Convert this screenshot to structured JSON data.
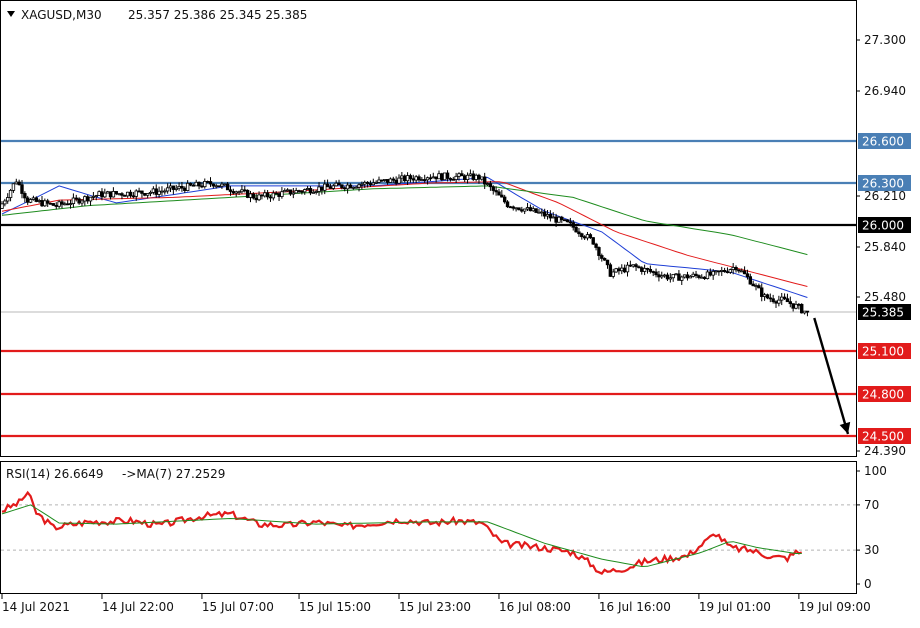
{
  "header": {
    "symbol": "XAGUSD,M30",
    "ohlc": "25.357 25.386 25.345 25.385"
  },
  "rsi_header": {
    "label": "RSI(14) 26.6649",
    "ma_label": "->MA(7) 27.2529"
  },
  "colors": {
    "background": "#ffffff",
    "candle": "#000000",
    "sma_fast": "#1f3fd6",
    "sma_mid": "#e21b1b",
    "sma_slow": "#1e8c1e",
    "resistance": "#4a7fb5",
    "pivot": "#000000",
    "support": "#e21b1b",
    "rsi_line": "#e21b1b",
    "rsi_ma": "#1e8c1e",
    "current_price": "#000000"
  },
  "chart_data": [
    {
      "type": "candlestick",
      "symbol": "XAGUSD",
      "timeframe": "M30",
      "ylim": [
        24.39,
        27.55
      ],
      "y_ticks": [
        "27.300",
        "26.940",
        "26.210",
        "25.840",
        "25.480",
        "24.390"
      ],
      "x_ticks": [
        "14 Jul 2021",
        "14 Jul 22:00",
        "15 Jul 07:00",
        "15 Jul 15:00",
        "15 Jul 23:00",
        "16 Jul 08:00",
        "16 Jul 16:00",
        "19 Jul 01:00",
        "19 Jul 09:00"
      ],
      "current_price": "25.385",
      "levels": [
        {
          "label": "26.600",
          "value": 26.6,
          "kind": "resistance"
        },
        {
          "label": "26.300",
          "value": 26.3,
          "kind": "resistance"
        },
        {
          "label": "26.000",
          "value": 26.0,
          "kind": "pivot"
        },
        {
          "label": "25.100",
          "value": 25.1,
          "kind": "support"
        },
        {
          "label": "24.800",
          "value": 24.8,
          "kind": "support"
        },
        {
          "label": "24.500",
          "value": 24.5,
          "kind": "support"
        }
      ],
      "forecast_arrow": {
        "from": 25.385,
        "to": 24.5
      },
      "trend_path": [
        [
          0,
          26.12
        ],
        [
          6,
          26.32
        ],
        [
          10,
          26.18
        ],
        [
          20,
          26.14
        ],
        [
          35,
          26.22
        ],
        [
          55,
          26.24
        ],
        [
          75,
          26.3
        ],
        [
          90,
          26.2
        ],
        [
          110,
          26.26
        ],
        [
          130,
          26.3
        ],
        [
          150,
          26.35
        ],
        [
          168,
          26.34
        ],
        [
          178,
          26.15
        ],
        [
          190,
          26.08
        ],
        [
          200,
          26.0
        ],
        [
          208,
          25.88
        ],
        [
          214,
          25.65
        ],
        [
          222,
          25.7
        ],
        [
          235,
          25.62
        ],
        [
          250,
          25.64
        ],
        [
          258,
          25.7
        ],
        [
          262,
          25.62
        ],
        [
          268,
          25.48
        ],
        [
          276,
          25.45
        ],
        [
          282,
          25.39
        ]
      ],
      "series": [
        {
          "name": "",
          "kind": "sma_fast",
          "points": [
            [
              0,
              26.08
            ],
            [
              20,
              26.28
            ],
            [
              40,
              26.16
            ],
            [
              80,
              26.28
            ],
            [
              130,
              26.28
            ],
            [
              170,
              26.34
            ],
            [
              190,
              26.1
            ],
            [
              210,
              25.95
            ],
            [
              225,
              25.72
            ],
            [
              255,
              25.66
            ],
            [
              283,
              25.47
            ]
          ]
        },
        {
          "name": "",
          "kind": "sma_mid",
          "points": [
            [
              0,
              26.1
            ],
            [
              20,
              26.18
            ],
            [
              60,
              26.2
            ],
            [
              100,
              26.24
            ],
            [
              150,
              26.3
            ],
            [
              175,
              26.31
            ],
            [
              195,
              26.16
            ],
            [
              215,
              25.95
            ],
            [
              240,
              25.78
            ],
            [
              283,
              25.55
            ]
          ]
        },
        {
          "name": "",
          "kind": "sma_slow",
          "points": [
            [
              0,
              26.07
            ],
            [
              30,
              26.14
            ],
            [
              80,
              26.2
            ],
            [
              130,
              26.26
            ],
            [
              170,
              26.28
            ],
            [
              200,
              26.2
            ],
            [
              225,
              26.03
            ],
            [
              255,
              25.93
            ],
            [
              283,
              25.78
            ]
          ]
        }
      ]
    },
    {
      "type": "line",
      "indicator": "RSI(14)",
      "ylim": [
        0,
        100
      ],
      "y_ticks": [
        "100",
        "70",
        "30",
        "0"
      ],
      "levels": [
        70,
        30
      ],
      "series": [
        {
          "name": "RSI(14)",
          "points": [
            [
              0,
              65
            ],
            [
              6,
              72
            ],
            [
              9,
              81
            ],
            [
              12,
              63
            ],
            [
              18,
              50
            ],
            [
              30,
              55
            ],
            [
              45,
              56
            ],
            [
              55,
              52
            ],
            [
              70,
              60
            ],
            [
              80,
              62
            ],
            [
              90,
              53
            ],
            [
              100,
              52
            ],
            [
              110,
              55
            ],
            [
              120,
              51
            ],
            [
              140,
              57
            ],
            [
              150,
              54
            ],
            [
              160,
              56
            ],
            [
              168,
              54
            ],
            [
              175,
              36
            ],
            [
              190,
              32
            ],
            [
              200,
              28
            ],
            [
              205,
              20
            ],
            [
              210,
              10
            ],
            [
              218,
              14
            ],
            [
              225,
              20
            ],
            [
              240,
              25
            ],
            [
              250,
              45
            ],
            [
              255,
              32
            ],
            [
              262,
              30
            ],
            [
              270,
              24
            ],
            [
              275,
              23
            ],
            [
              278,
              28
            ]
          ]
        },
        {
          "name": "->MA(7)",
          "points": [
            [
              0,
              62
            ],
            [
              10,
              70
            ],
            [
              20,
              54
            ],
            [
              40,
              53
            ],
            [
              80,
              58
            ],
            [
              110,
              53
            ],
            [
              150,
              55
            ],
            [
              170,
              55
            ],
            [
              190,
              36
            ],
            [
              210,
              22
            ],
            [
              225,
              15
            ],
            [
              245,
              28
            ],
            [
              255,
              38
            ],
            [
              265,
              32
            ],
            [
              278,
              27
            ]
          ]
        }
      ]
    }
  ]
}
